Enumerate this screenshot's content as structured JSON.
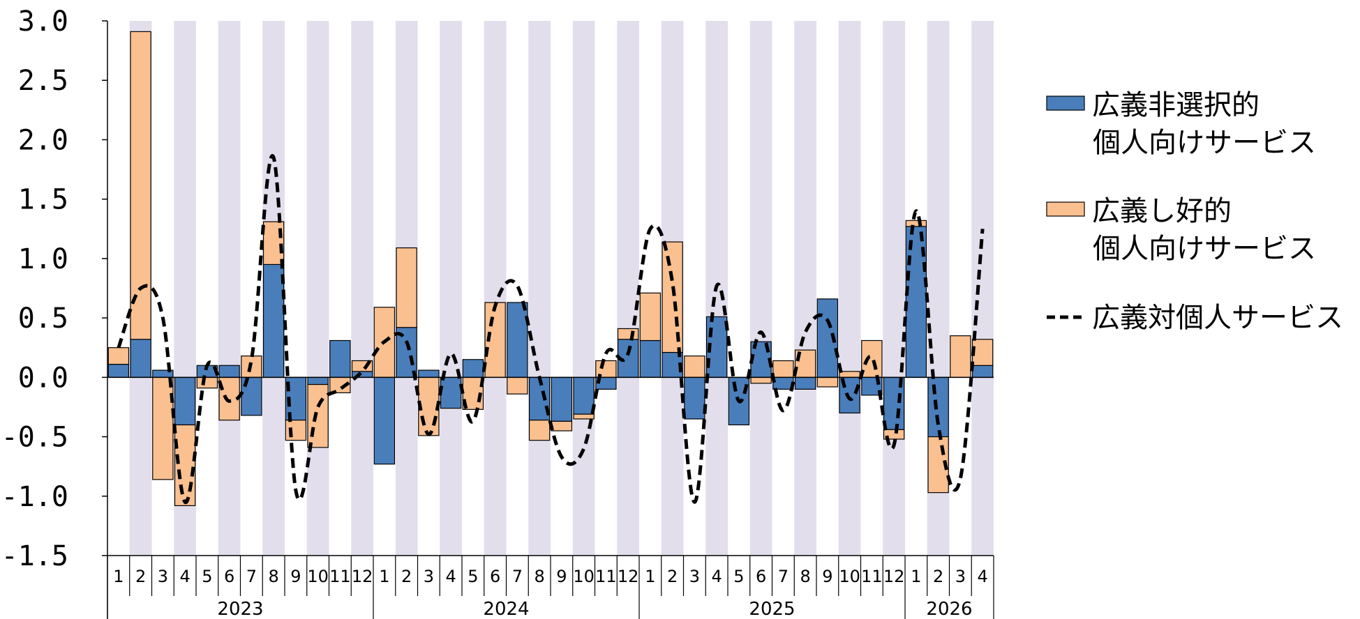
{
  "chart_data": {
    "type": "bar",
    "stacked": true,
    "ylim": [
      -1.5,
      3.0
    ],
    "yticks": [
      "3.0",
      "2.5",
      "2.0",
      "1.5",
      "1.0",
      "0.5",
      "0.0",
      "-0.5",
      "-1.0",
      "-1.5"
    ],
    "years": [
      {
        "label": "2023",
        "months": 12
      },
      {
        "label": "2024",
        "months": 12
      },
      {
        "label": "2025",
        "months": 12
      },
      {
        "label": "2026",
        "months": 4
      }
    ],
    "months": [
      "1",
      "2",
      "3",
      "4",
      "5",
      "6",
      "7",
      "8",
      "9",
      "10",
      "11",
      "12",
      "1",
      "2",
      "3",
      "4",
      "5",
      "6",
      "7",
      "8",
      "9",
      "10",
      "11",
      "12",
      "1",
      "2",
      "3",
      "4",
      "5",
      "6",
      "7",
      "8",
      "9",
      "10",
      "11",
      "12",
      "1",
      "2",
      "3",
      "4"
    ],
    "series": [
      {
        "name": "広義非選択的個人向けサービス",
        "legend_lines": [
          "広義非選択的",
          "個人向けサービス"
        ],
        "color": "#4a7ebb",
        "values": [
          0.11,
          0.32,
          0.06,
          -0.4,
          0.1,
          0.1,
          -0.32,
          0.95,
          -0.36,
          -0.06,
          0.31,
          0.05,
          -0.73,
          0.42,
          0.06,
          -0.26,
          0.15,
          0.0,
          0.63,
          -0.36,
          -0.37,
          -0.31,
          -0.1,
          0.32,
          0.31,
          0.21,
          -0.35,
          0.51,
          -0.4,
          0.3,
          -0.1,
          -0.1,
          0.66,
          -0.3,
          -0.15,
          -0.44,
          1.27,
          -0.5,
          0.0,
          0.1
        ]
      },
      {
        "name": "広義し好的個人向けサービス",
        "legend_lines": [
          "広義し好的",
          "個人向けサービス"
        ],
        "color": "#fac090",
        "values": [
          0.14,
          2.59,
          -0.86,
          -0.68,
          -0.09,
          -0.36,
          0.18,
          0.36,
          -0.17,
          -0.53,
          -0.13,
          0.09,
          0.59,
          0.67,
          -0.49,
          0.0,
          -0.27,
          0.63,
          -0.14,
          -0.17,
          -0.08,
          -0.04,
          0.14,
          0.09,
          0.4,
          0.93,
          0.18,
          0.0,
          0.0,
          -0.05,
          0.14,
          0.23,
          -0.08,
          0.05,
          0.31,
          -0.08,
          0.05,
          -0.47,
          0.35,
          0.22
        ]
      }
    ],
    "line_series": {
      "name": "広義対個人サービス",
      "values": [
        0.25,
        0.75,
        0.5,
        -1.05,
        0.1,
        -0.2,
        0.15,
        1.85,
        -0.95,
        -0.25,
        -0.1,
        0.05,
        0.3,
        0.3,
        -0.48,
        0.2,
        -0.37,
        0.6,
        0.77,
        0.0,
        -0.67,
        -0.6,
        0.2,
        0.2,
        1.25,
        0.8,
        -1.05,
        0.77,
        -0.2,
        0.38,
        -0.28,
        0.38,
        0.48,
        -0.18,
        0.17,
        -0.57,
        1.4,
        -0.4,
        -0.85,
        1.25
      ]
    },
    "band_color": "#e3deec",
    "legend_placement": "right"
  }
}
